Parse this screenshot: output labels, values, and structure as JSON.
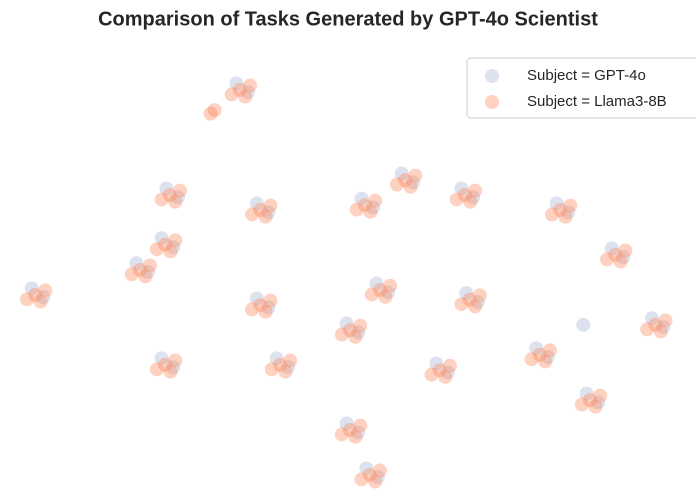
{
  "chart_data": {
    "type": "scatter",
    "title": "Comparison of Tasks Generated by GPT-4o Scientist",
    "xlim": [
      0,
      100
    ],
    "ylim": [
      0,
      100
    ],
    "legend": "upper right",
    "series": [
      {
        "name": "Subject = GPT-4o",
        "color": "#8da0cb",
        "x": [
          33.3,
          35,
          3.2,
          4.9,
          23,
          24.7,
          36.3,
          38,
          22.3,
          24,
          18.6,
          20.3,
          51.7,
          53.4,
          57.6,
          59.3,
          66.4,
          68.1,
          80.4,
          82.1,
          88.5,
          90.2,
          94.4,
          96.1,
          36.3,
          38,
          22.3,
          24,
          53.9,
          55.6,
          67.1,
          68.8,
          39.2,
          40.9,
          62.7,
          64.4,
          77.4,
          79.1,
          84.8,
          86.5,
          49.5,
          51.2,
          52.4,
          54.1,
          49.5,
          51.2,
          84.3
        ],
        "values": [
          94.7,
          92.7,
          48.1,
          46.1,
          70.8,
          68.8,
          67.4,
          65.4,
          59.5,
          57.5,
          53.8,
          51.8,
          68.5,
          66.5,
          74.2,
          72.2,
          70.8,
          68.8,
          67.4,
          65.4,
          57.2,
          55.2,
          41.3,
          39.3,
          45.8,
          43.8,
          32.2,
          30.2,
          49.2,
          47.2,
          47,
          45,
          32.2,
          30.2,
          31,
          29,
          34.5,
          32.5,
          24.2,
          22.2,
          17.4,
          15.4,
          7.2,
          5.2,
          40.1,
          38.1,
          39.8
        ]
      },
      {
        "name": "Subject = Llama3-8B",
        "color": "#fc8d62",
        "x": [
          33.8,
          35.3,
          32.6,
          34.6,
          3.7,
          5.2,
          2.5,
          4.5,
          23.5,
          25,
          22.3,
          24.3,
          36.8,
          38.3,
          35.6,
          37.6,
          22.8,
          24.3,
          21.6,
          23.6,
          19.1,
          20.6,
          17.9,
          19.9,
          52.2,
          53.7,
          51,
          53,
          58.1,
          59.6,
          56.9,
          58.9,
          66.9,
          68.4,
          65.7,
          67.7,
          80.9,
          82.4,
          79.7,
          81.7,
          89,
          90.5,
          87.8,
          89.8,
          94.9,
          96.4,
          93.7,
          95.7,
          36.8,
          38.3,
          35.6,
          37.6,
          22.8,
          24.3,
          21.6,
          23.6,
          54.4,
          55.9,
          53.2,
          55.2,
          67.6,
          69.1,
          66.4,
          68.4,
          39.7,
          41.2,
          38.5,
          40.5,
          63.2,
          64.7,
          62,
          64,
          77.9,
          79.4,
          76.7,
          78.7,
          85.3,
          86.8,
          84.1,
          86.1,
          50,
          51.5,
          48.8,
          50.8,
          52.9,
          54.4,
          51.7,
          53.7,
          50,
          51.5,
          48.8,
          50.8,
          30.1,
          29.5
        ],
        "values": [
          93.2,
          94.2,
          92.2,
          91.7,
          46.6,
          47.6,
          45.6,
          45.1,
          69.3,
          70.3,
          68.3,
          67.8,
          65.9,
          66.9,
          64.9,
          64.4,
          58,
          59,
          57,
          56.5,
          52.3,
          53.3,
          51.3,
          50.8,
          67,
          68,
          66,
          65.5,
          72.7,
          73.7,
          71.7,
          71.2,
          69.3,
          70.3,
          68.3,
          67.8,
          65.9,
          66.9,
          64.9,
          64.4,
          55.7,
          56.7,
          54.7,
          54.2,
          39.8,
          40.8,
          38.8,
          38.3,
          44.3,
          45.3,
          43.3,
          42.8,
          30.7,
          31.7,
          29.7,
          29.2,
          47.7,
          48.7,
          46.7,
          46.2,
          45.5,
          46.5,
          44.5,
          44,
          30.7,
          31.7,
          29.7,
          29.2,
          29.5,
          30.5,
          28.5,
          28,
          33,
          34,
          32,
          31.5,
          22.7,
          23.7,
          21.7,
          21.2,
          15.9,
          16.9,
          14.9,
          14.4,
          5.7,
          6.7,
          4.7,
          4.2,
          38.6,
          39.6,
          37.6,
          37.1,
          88.6,
          87.8
        ]
      }
    ]
  }
}
